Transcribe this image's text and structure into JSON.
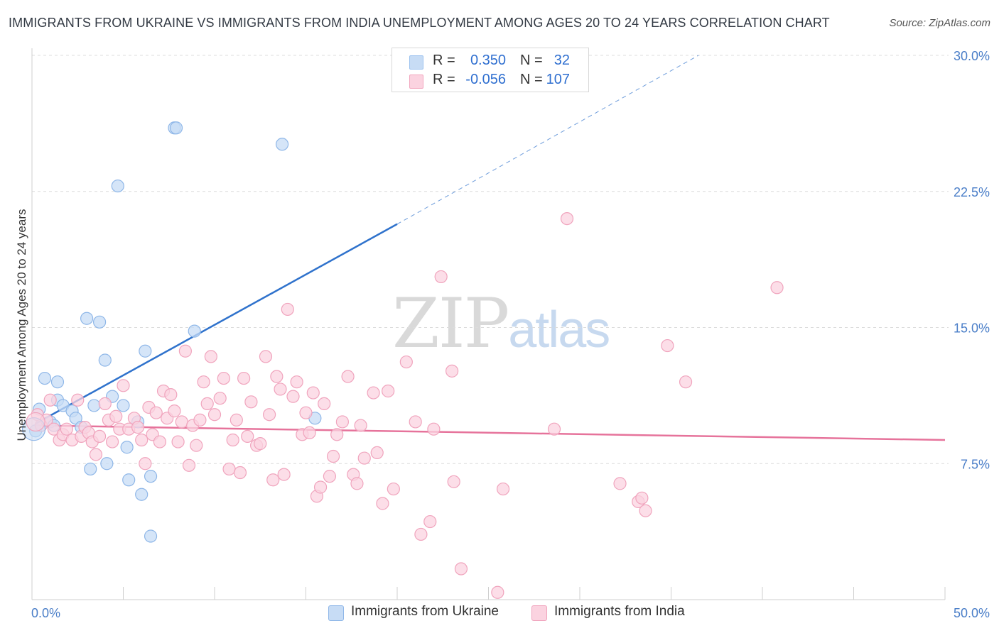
{
  "title": "IMMIGRANTS FROM UKRAINE VS IMMIGRANTS FROM INDIA UNEMPLOYMENT AMONG AGES 20 TO 24 YEARS CORRELATION CHART",
  "source": "Source: ZipAtlas.com",
  "watermark": {
    "zip": "ZIP",
    "atlas": "atlas"
  },
  "legend": {
    "rows": [
      {
        "r_label": "R =",
        "r_value": "0.350",
        "n_label": "N =",
        "n_value": "32",
        "color": "#9dc3ef",
        "fill": "#c7dcf5"
      },
      {
        "r_label": "R =",
        "r_value": "-0.056",
        "n_label": "N =",
        "n_value": "107",
        "color": "#f2a7bf",
        "fill": "#fbd3e0"
      }
    ]
  },
  "bottom_legend": [
    {
      "label": "Immigrants from Ukraine",
      "color": "#c7dcf5",
      "border": "#8fb7e8"
    },
    {
      "label": "Immigrants from India",
      "color": "#fbd3e0",
      "border": "#f0a4bd"
    }
  ],
  "chart_data": {
    "type": "scatter",
    "title": "IMMIGRANTS FROM UKRAINE VS IMMIGRANTS FROM INDIA UNEMPLOYMENT AMONG AGES 20 TO 24 YEARS CORRELATION CHART",
    "xlabel": "",
    "ylabel": "Unemployment Among Ages 20 to 24 years",
    "xlim": [
      0,
      50
    ],
    "ylim": [
      0,
      30
    ],
    "x_tick_labels": [
      "0.0%",
      "50.0%"
    ],
    "y_ticks": [
      7.5,
      15.0,
      22.5,
      30.0
    ],
    "y_tick_labels": [
      "7.5%",
      "15.0%",
      "22.5%",
      "30.0%"
    ],
    "grid": true,
    "legend_position": "top-center",
    "series": [
      {
        "name": "Immigrants from Ukraine",
        "color": "#8fb7e8",
        "fill": "#c7dcf5",
        "line_color": "#2f72cc",
        "trend": {
          "x": [
            0.2,
            20.0
          ],
          "y": [
            9.7,
            20.7
          ],
          "dashed_extension_to": [
            36.5,
            30.0
          ]
        },
        "points": [
          [
            0.2,
            9.3
          ],
          [
            0.4,
            10.5
          ],
          [
            0.7,
            12.2
          ],
          [
            1.0,
            9.8
          ],
          [
            1.2,
            9.6
          ],
          [
            1.4,
            12.0
          ],
          [
            1.4,
            11.0
          ],
          [
            1.7,
            10.7
          ],
          [
            2.2,
            10.4
          ],
          [
            2.4,
            10.0
          ],
          [
            2.7,
            9.5
          ],
          [
            3.0,
            15.5
          ],
          [
            3.2,
            7.2
          ],
          [
            3.4,
            10.7
          ],
          [
            3.7,
            15.3
          ],
          [
            4.0,
            13.2
          ],
          [
            4.1,
            7.5
          ],
          [
            4.4,
            11.2
          ],
          [
            4.7,
            22.8
          ],
          [
            5.0,
            10.7
          ],
          [
            5.2,
            8.4
          ],
          [
            5.3,
            6.6
          ],
          [
            5.8,
            9.8
          ],
          [
            6.0,
            5.8
          ],
          [
            6.2,
            13.7
          ],
          [
            6.5,
            6.8
          ],
          [
            6.5,
            3.5
          ],
          [
            7.8,
            26.0
          ],
          [
            7.9,
            26.0
          ],
          [
            8.9,
            14.8
          ],
          [
            13.7,
            25.1
          ],
          [
            15.5,
            10.0
          ]
        ]
      },
      {
        "name": "Immigrants from India",
        "color": "#f0a4bd",
        "fill": "#fbd3e0",
        "line_color": "#e6739b",
        "trend": {
          "x": [
            0.2,
            50.0
          ],
          "y": [
            9.6,
            8.8
          ]
        },
        "points": [
          [
            0.3,
            10.2
          ],
          [
            0.5,
            9.6
          ],
          [
            0.8,
            9.9
          ],
          [
            1.0,
            11.0
          ],
          [
            1.2,
            9.4
          ],
          [
            1.5,
            8.8
          ],
          [
            1.7,
            9.1
          ],
          [
            1.9,
            9.4
          ],
          [
            2.2,
            8.8
          ],
          [
            2.5,
            11.0
          ],
          [
            2.7,
            9.0
          ],
          [
            2.9,
            9.5
          ],
          [
            3.1,
            9.2
          ],
          [
            3.3,
            8.7
          ],
          [
            3.5,
            8.0
          ],
          [
            3.7,
            9.0
          ],
          [
            4.0,
            10.8
          ],
          [
            4.2,
            9.9
          ],
          [
            4.4,
            8.7
          ],
          [
            4.6,
            10.1
          ],
          [
            4.8,
            9.4
          ],
          [
            5.0,
            11.8
          ],
          [
            5.3,
            9.4
          ],
          [
            5.6,
            10.0
          ],
          [
            5.8,
            9.5
          ],
          [
            6.0,
            8.8
          ],
          [
            6.2,
            7.5
          ],
          [
            6.4,
            10.6
          ],
          [
            6.6,
            9.1
          ],
          [
            6.8,
            10.3
          ],
          [
            7.0,
            8.7
          ],
          [
            7.2,
            11.5
          ],
          [
            7.4,
            10.0
          ],
          [
            7.6,
            11.3
          ],
          [
            7.8,
            10.4
          ],
          [
            8.0,
            8.7
          ],
          [
            8.2,
            9.8
          ],
          [
            8.4,
            13.7
          ],
          [
            8.6,
            7.4
          ],
          [
            8.8,
            9.6
          ],
          [
            9.0,
            8.5
          ],
          [
            9.2,
            9.9
          ],
          [
            9.4,
            12.0
          ],
          [
            9.6,
            10.8
          ],
          [
            9.8,
            13.4
          ],
          [
            10.0,
            10.2
          ],
          [
            10.3,
            11.1
          ],
          [
            10.5,
            12.2
          ],
          [
            10.8,
            7.2
          ],
          [
            11.0,
            8.8
          ],
          [
            11.2,
            9.9
          ],
          [
            11.4,
            7.0
          ],
          [
            11.6,
            12.2
          ],
          [
            11.8,
            9.0
          ],
          [
            12.0,
            10.9
          ],
          [
            12.3,
            8.5
          ],
          [
            12.5,
            8.6
          ],
          [
            12.8,
            13.4
          ],
          [
            13.0,
            10.2
          ],
          [
            13.2,
            6.6
          ],
          [
            13.4,
            12.3
          ],
          [
            13.6,
            11.6
          ],
          [
            13.8,
            6.9
          ],
          [
            14.0,
            16.0
          ],
          [
            14.3,
            11.2
          ],
          [
            14.5,
            12.0
          ],
          [
            14.8,
            9.1
          ],
          [
            15.0,
            10.3
          ],
          [
            15.2,
            9.2
          ],
          [
            15.4,
            11.4
          ],
          [
            15.6,
            5.7
          ],
          [
            15.8,
            6.2
          ],
          [
            16.0,
            10.8
          ],
          [
            16.3,
            6.8
          ],
          [
            16.5,
            7.9
          ],
          [
            16.7,
            9.1
          ],
          [
            17.0,
            9.8
          ],
          [
            17.3,
            12.3
          ],
          [
            17.6,
            6.9
          ],
          [
            17.8,
            6.4
          ],
          [
            18.0,
            9.6
          ],
          [
            18.2,
            7.8
          ],
          [
            18.7,
            11.4
          ],
          [
            18.9,
            8.1
          ],
          [
            19.2,
            5.3
          ],
          [
            19.5,
            11.5
          ],
          [
            19.8,
            6.1
          ],
          [
            20.5,
            13.1
          ],
          [
            21.0,
            9.8
          ],
          [
            21.3,
            3.6
          ],
          [
            21.8,
            4.3
          ],
          [
            22.0,
            9.4
          ],
          [
            22.4,
            17.8
          ],
          [
            23.0,
            12.6
          ],
          [
            23.1,
            6.5
          ],
          [
            23.5,
            1.7
          ],
          [
            25.5,
            0.4
          ],
          [
            25.8,
            6.1
          ],
          [
            28.6,
            9.4
          ],
          [
            29.3,
            21.0
          ],
          [
            32.2,
            6.4
          ],
          [
            33.2,
            5.4
          ],
          [
            33.4,
            5.6
          ],
          [
            33.6,
            4.9
          ],
          [
            34.8,
            14.0
          ],
          [
            35.8,
            12.0
          ],
          [
            40.8,
            17.2
          ]
        ]
      }
    ]
  }
}
